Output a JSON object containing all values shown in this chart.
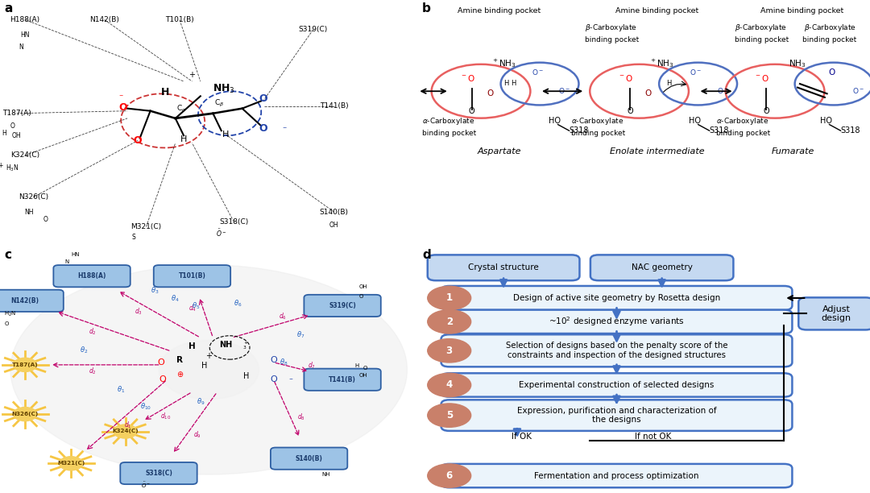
{
  "bg_color": "#ffffff",
  "blue_edge": "#4472C4",
  "light_blue_fill": "#C5D9F1",
  "box_fill": "#EBF4FB",
  "step_circle_color": "#C9806A",
  "sun_color": "#F5C842",
  "residue_box_fill": "#9DC3E6",
  "residue_box_edge": "#2E5FA3",
  "pink_arrow": "#C0006A",
  "theta_color": "#2060C0",
  "red_circle": "#E87070",
  "blue_circle": "#6080C0",
  "flow_steps": [
    "Design of active site geometry by Rosetta design",
    "~10² designed enzyme variants",
    "Selection of designs based on the penalty score of the\nconstraints and inspection of the designed structures",
    "Experimental construction of selected designs",
    "Expression, purification and characterization of\nthe designs",
    "Fermentation and process optimization"
  ],
  "top_boxes": [
    "Crystal structure",
    "NAC geometry"
  ],
  "adjust_label": "Adjust\ndesign"
}
